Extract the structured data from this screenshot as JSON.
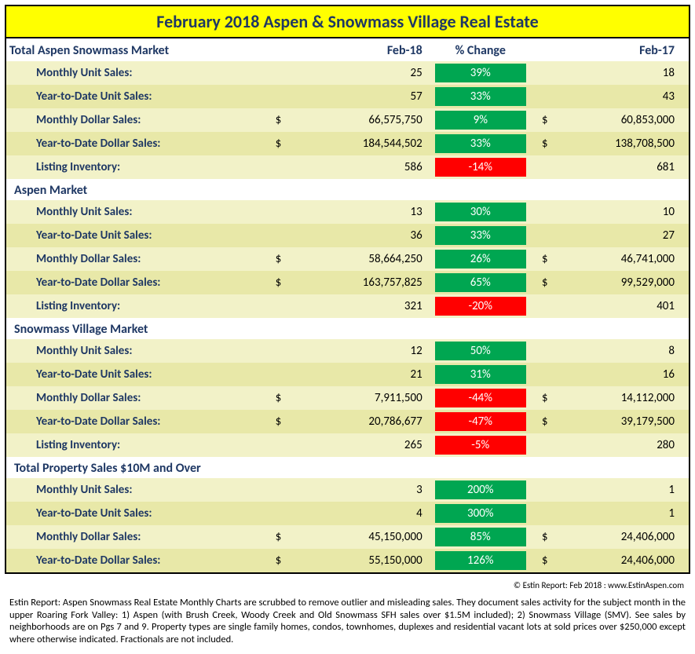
{
  "title": "February 2018 Aspen & Snowmass Village Real Estate",
  "columns": {
    "c1": "Feb-18",
    "c2": "% Change",
    "c3": "Feb-17"
  },
  "sections": [
    {
      "name": "Total Aspen Snowmass Market",
      "rows": [
        {
          "label": "Monthly Unit Sales:",
          "d1": "",
          "v1": "25",
          "pct": "39%",
          "pos": true,
          "d2": "",
          "v2": "18"
        },
        {
          "label": "Year-to-Date Unit Sales:",
          "d1": "",
          "v1": "57",
          "pct": "33%",
          "pos": true,
          "d2": "",
          "v2": "43"
        },
        {
          "label": "Monthly Dollar Sales:",
          "d1": "$",
          "v1": "66,575,750",
          "pct": "9%",
          "pos": true,
          "d2": "$",
          "v2": "60,853,000"
        },
        {
          "label": "Year-to-Date Dollar Sales:",
          "d1": "$",
          "v1": "184,544,502",
          "pct": "33%",
          "pos": true,
          "d2": "$",
          "v2": "138,708,500"
        },
        {
          "label": "Listing Inventory:",
          "d1": "",
          "v1": "586",
          "pct": "-14%",
          "pos": false,
          "d2": "",
          "v2": "681"
        }
      ]
    },
    {
      "name": "Aspen Market",
      "rows": [
        {
          "label": "Monthly Unit Sales:",
          "d1": "",
          "v1": "13",
          "pct": "30%",
          "pos": true,
          "d2": "",
          "v2": "10"
        },
        {
          "label": "Year-to-Date Unit Sales:",
          "d1": "",
          "v1": "36",
          "pct": "33%",
          "pos": true,
          "d2": "",
          "v2": "27"
        },
        {
          "label": "Monthly Dollar Sales:",
          "d1": "$",
          "v1": "58,664,250",
          "pct": "26%",
          "pos": true,
          "d2": "$",
          "v2": "46,741,000"
        },
        {
          "label": "Year-to-Date Dollar Sales:",
          "d1": "$",
          "v1": "163,757,825",
          "pct": "65%",
          "pos": true,
          "d2": "$",
          "v2": "99,529,000"
        },
        {
          "label": "Listing Inventory:",
          "d1": "",
          "v1": "321",
          "pct": "-20%",
          "pos": false,
          "d2": "",
          "v2": "401"
        }
      ]
    },
    {
      "name": "Snowmass Village Market",
      "rows": [
        {
          "label": "Monthly Unit Sales:",
          "d1": "",
          "v1": "12",
          "pct": "50%",
          "pos": true,
          "d2": "",
          "v2": "8"
        },
        {
          "label": "Year-to-Date Unit Sales:",
          "d1": "",
          "v1": "21",
          "pct": "31%",
          "pos": true,
          "d2": "",
          "v2": "16"
        },
        {
          "label": "Monthly Dollar Sales:",
          "d1": "$",
          "v1": "7,911,500",
          "pct": "-44%",
          "pos": false,
          "d2": "$",
          "v2": "14,112,000"
        },
        {
          "label": "Year-to-Date Dollar Sales:",
          "d1": "$",
          "v1": "20,786,677",
          "pct": "-47%",
          "pos": false,
          "d2": "$",
          "v2": "39,179,500"
        },
        {
          "label": "Listing Inventory:",
          "d1": "",
          "v1": "265",
          "pct": "-5%",
          "pos": false,
          "d2": "",
          "v2": "280"
        }
      ]
    },
    {
      "name": "Total Property Sales $10M and Over",
      "rows": [
        {
          "label": "Monthly Unit Sales:",
          "d1": "",
          "v1": "3",
          "pct": "200%",
          "pos": true,
          "d2": "",
          "v2": "1"
        },
        {
          "label": "Year-to-Date Unit Sales:",
          "d1": "",
          "v1": "4",
          "pct": "300%",
          "pos": true,
          "d2": "",
          "v2": "1"
        },
        {
          "label": "Monthly Dollar Sales:",
          "d1": "$",
          "v1": "45,150,000",
          "pct": "85%",
          "pos": true,
          "d2": "$",
          "v2": "24,406,000"
        },
        {
          "label": "Year-to-Date Dollar Sales:",
          "d1": "$",
          "v1": "55,150,000",
          "pct": "126%",
          "pos": true,
          "d2": "$",
          "v2": "24,406,000"
        }
      ]
    }
  ],
  "source": "© Estin Report: Feb 2018 : www.EstinAspen.com",
  "footnote": "Estin Report: Aspen Snowmass Real Estate Monthly Charts are scrubbed to remove outlier and misleading sales. They document sales activity for the subject month in the upper Roaring Fork Valley: 1) Aspen (with Brush Creek, Woody Creek and Old Snowmass SFH sales over $1.5M included); 2) Snowmass Village (SMV). See sales by neighborhoods are on Pgs 7 and 9. Property types are single family homes, condos, townhomes, duplexes and residential vacant lots at sold prices over $250,000 except where otherwise indicated. Fractionals are not included.",
  "colors": {
    "title_bg": "#ffff00",
    "heading_text": "#1f3864",
    "band_a": "#f2f2c8",
    "band_b": "#e8e8a8",
    "pct_pos": "#00a651",
    "pct_neg": "#ff0000"
  }
}
